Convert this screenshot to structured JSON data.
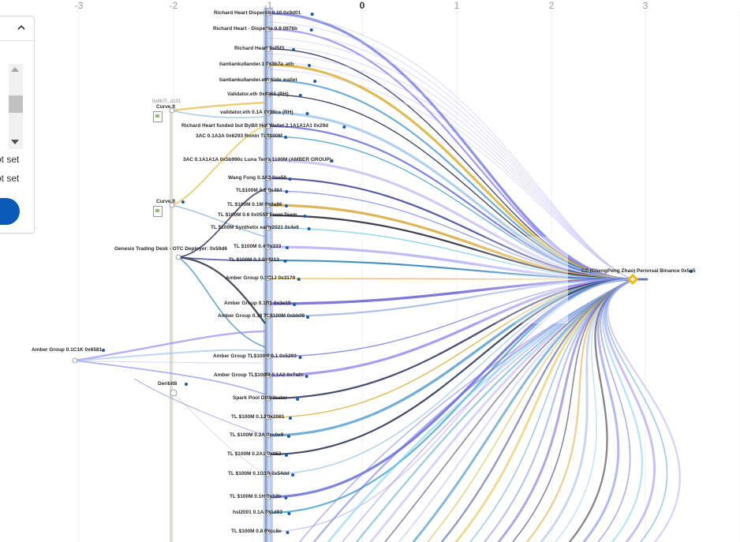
{
  "panel": {
    "not_set_1": "ot set",
    "not_set_2": "ot set"
  },
  "axis": {
    "ticks": [
      "-3",
      "-2",
      "-1",
      "0",
      "1",
      "2",
      "3"
    ],
    "zero_label": "0"
  },
  "hub": {
    "label": "CZ (ChengPeng Zhao) Peronsal Binance 0x5e5",
    "color": "#f0b90b"
  },
  "column_labels": [
    "Richard Heart Disperse 0.10 0x9d01",
    "Richard Heart - Disperse 0.9 0976b",
    "Richard Heart 0xf5f3",
    "tiantiankullander.1 0x3b7a .eth",
    "tiantiankullander.eth Side wallet",
    "Validator.eth 0x8a65 (RH)",
    "validator.eth 0.1A 0x38ca (RH)",
    "Richard Heart funded but ByBit Hot Wallet 2.1A1A1A1 0x29d",
    "3AC 0.1A3A 0x6293 Ronin TL$100M",
    "3AC 0.1A1A1A 0x5b990c Luna Terra 1100M (AMBER GROUP)",
    "Wang Fong 0.3A2 0xe50",
    "TL$100M 0.3 0x484",
    "TL $100M 0.1M 0xda86",
    "TL $100M 0.6 0x0559 Front Team",
    "TL $100M Synthetix early2021 0x4e6",
    "TL $100M 0.4 0x333",
    "TL $100M 0.3 0x4213",
    "Amber Group 0.1C1J 0x3179",
    "Amber Group 0.1B1 0x3e19",
    "Amber Group 0.18 TL$100M 0xbb08",
    "Amber Group TL$100M 0.1 0x5293",
    "Amber Group TL$100M 0.1A2 0x7a2c",
    "Spark Pool Distributor",
    "TL $100M 0.1J 0x2081",
    "TL $100M 0.2A 0xc0e9",
    "TL $100M 0.2A1 0x052",
    "TL $100M 0.1G1A 0x54dd",
    "TL $100M 0.1H 0x12b",
    "hsl2001 0.1A 0x1d93",
    "TL $100M 0.8 0xcc8e"
  ],
  "left_labels": {
    "curve_small": "0x8b7f...d101",
    "curve_1": "Curve.fi",
    "curve_2": "Curve.fi",
    "genesis": "Genesis Trading Desk - OTC Deployer: 0x59d6",
    "amber_left": "Amber Group 0.1C1K 0x6581",
    "deribit": "Deribit8"
  }
}
